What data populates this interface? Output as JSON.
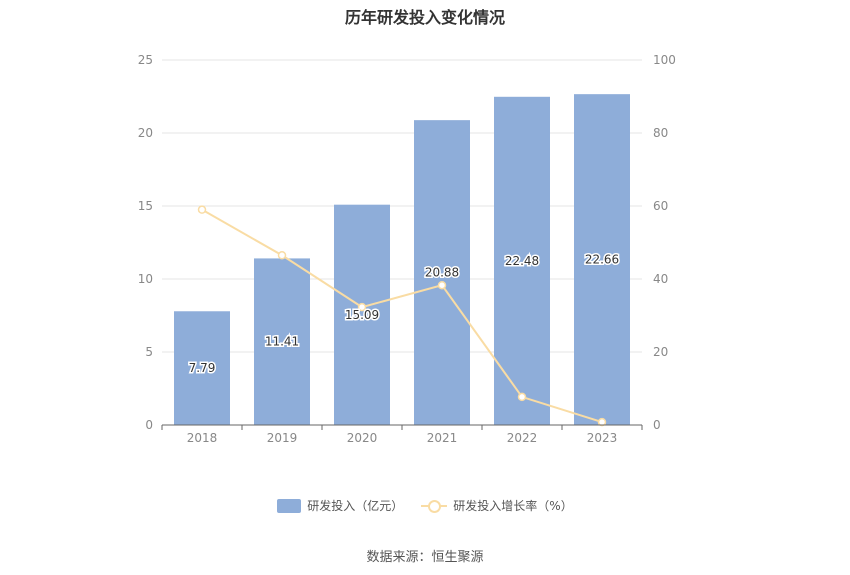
{
  "chart_data": {
    "type": "bar",
    "title": "历年研发投入变化情况",
    "categories": [
      "2018",
      "2019",
      "2020",
      "2021",
      "2022",
      "2023"
    ],
    "series": [
      {
        "name": "研发投入（亿元）",
        "type": "bar",
        "axis": "left",
        "values": [
          7.79,
          11.41,
          15.09,
          20.88,
          22.48,
          22.66
        ],
        "labels": [
          "7.79",
          "11.41",
          "15.09",
          "20.88",
          "22.48",
          "22.66"
        ],
        "color": "#8eadd9"
      },
      {
        "name": "研发投入增长率（%）",
        "type": "line",
        "axis": "right",
        "values": [
          59,
          46.5,
          32.3,
          38.3,
          7.7,
          0.8
        ],
        "color": "#f9dca4"
      }
    ],
    "y_left": {
      "min": 0,
      "max": 25,
      "ticks": [
        0,
        5,
        10,
        15,
        20,
        25
      ]
    },
    "y_right": {
      "min": 0,
      "max": 100,
      "ticks": [
        0,
        20,
        40,
        60,
        80,
        100
      ]
    },
    "grid": true,
    "legend_position": "bottom",
    "source": "数据来源：恒生聚源"
  }
}
